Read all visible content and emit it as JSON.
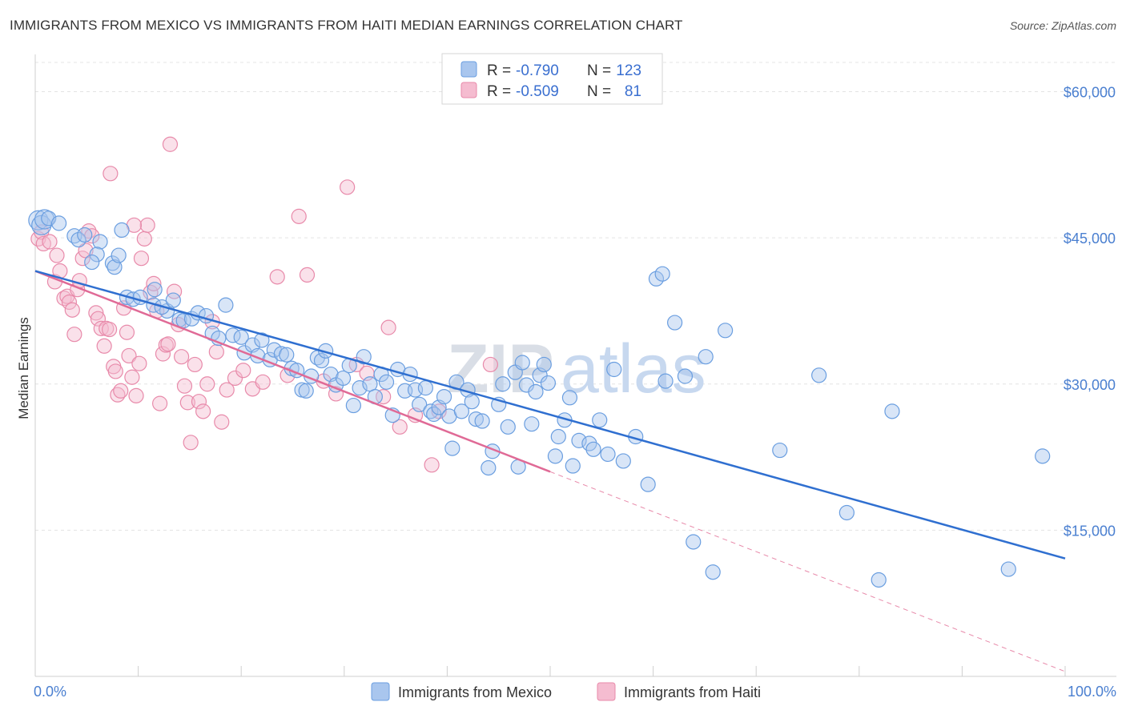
{
  "title": "IMMIGRANTS FROM MEXICO VS IMMIGRANTS FROM HAITI MEDIAN EARNINGS CORRELATION CHART",
  "source": "Source: ZipAtlas.com",
  "watermark": {
    "zip": "ZIP",
    "atlas": "atlas"
  },
  "colors": {
    "mexico": "#6a9ee0",
    "mexico_fill": "#a9c6ee",
    "mexico_line": "#2f6fd0",
    "haiti": "#e88aaa",
    "haiti_fill": "#f5bcd0",
    "haiti_line": "#e06a96",
    "tick": "#4a7fd0"
  },
  "legend": {
    "mexico": {
      "r_label": "R =",
      "r_value": "-0.790",
      "n_label": "N =",
      "n_value": "123"
    },
    "haiti": {
      "r_label": "R =",
      "r_value": "-0.509",
      "n_label": "N =",
      "n_value": "81"
    }
  },
  "chart_data": {
    "type": "scatter",
    "title": "IMMIGRANTS FROM MEXICO VS IMMIGRANTS FROM HAITI MEDIAN EARNINGS CORRELATION CHART",
    "xlabel": "",
    "ylabel": "Median Earnings",
    "xlim": [
      0,
      100
    ],
    "ylim": [
      0,
      63000
    ],
    "x_tick_labels": [
      "0.0%",
      "100.0%"
    ],
    "y_ticks": [
      15000,
      30000,
      45000,
      60000
    ],
    "y_tick_labels": [
      "$15,000",
      "$30,000",
      "$45,000",
      "$60,000"
    ],
    "grid": true,
    "legend_placement": "top-center",
    "series": [
      {
        "name": "Immigrants from Mexico",
        "r": -0.79,
        "n": 123,
        "trend": {
          "x": [
            0,
            100
          ],
          "y": [
            41600,
            12100
          ]
        },
        "points": [
          [
            0.3,
            46800
          ],
          [
            0.6,
            46300
          ],
          [
            0.9,
            46900
          ],
          [
            1.3,
            47000
          ],
          [
            2.3,
            46500
          ],
          [
            3.8,
            45200
          ],
          [
            4.2,
            44800
          ],
          [
            4.8,
            45300
          ],
          [
            6.3,
            44600
          ],
          [
            6.0,
            43300
          ],
          [
            5.5,
            42500
          ],
          [
            7.5,
            42400
          ],
          [
            7.7,
            42000
          ],
          [
            8.1,
            43200
          ],
          [
            8.4,
            45800
          ],
          [
            8.9,
            38900
          ],
          [
            9.5,
            38700
          ],
          [
            10.2,
            38900
          ],
          [
            11.6,
            39700
          ],
          [
            11.5,
            38100
          ],
          [
            12.8,
            37500
          ],
          [
            12.3,
            37900
          ],
          [
            13.4,
            38600
          ],
          [
            14.0,
            36600
          ],
          [
            14.4,
            36500
          ],
          [
            15.2,
            36700
          ],
          [
            15.8,
            37300
          ],
          [
            16.6,
            37000
          ],
          [
            17.2,
            35200
          ],
          [
            17.8,
            34700
          ],
          [
            18.5,
            38100
          ],
          [
            19.2,
            35000
          ],
          [
            20.0,
            34800
          ],
          [
            20.3,
            33200
          ],
          [
            21.1,
            34000
          ],
          [
            21.6,
            32900
          ],
          [
            22.0,
            34500
          ],
          [
            22.8,
            32500
          ],
          [
            23.2,
            33500
          ],
          [
            23.9,
            33100
          ],
          [
            24.4,
            33000
          ],
          [
            24.9,
            31600
          ],
          [
            25.4,
            31400
          ],
          [
            25.9,
            29400
          ],
          [
            26.3,
            29300
          ],
          [
            26.8,
            30800
          ],
          [
            27.4,
            32700
          ],
          [
            27.8,
            32400
          ],
          [
            28.2,
            33400
          ],
          [
            28.7,
            31000
          ],
          [
            29.2,
            29900
          ],
          [
            29.9,
            30600
          ],
          [
            30.5,
            31900
          ],
          [
            30.9,
            27800
          ],
          [
            31.5,
            29600
          ],
          [
            31.9,
            32800
          ],
          [
            32.5,
            30000
          ],
          [
            33.0,
            28700
          ],
          [
            33.6,
            31000
          ],
          [
            34.1,
            30200
          ],
          [
            34.7,
            26800
          ],
          [
            35.2,
            31500
          ],
          [
            35.9,
            29300
          ],
          [
            36.4,
            31000
          ],
          [
            36.9,
            29400
          ],
          [
            37.3,
            27900
          ],
          [
            37.9,
            29600
          ],
          [
            38.4,
            27200
          ],
          [
            38.7,
            26900
          ],
          [
            39.2,
            27600
          ],
          [
            39.7,
            28700
          ],
          [
            40.2,
            26700
          ],
          [
            40.5,
            23400
          ],
          [
            40.9,
            30200
          ],
          [
            41.4,
            27200
          ],
          [
            42.0,
            29400
          ],
          [
            42.4,
            28200
          ],
          [
            42.8,
            26400
          ],
          [
            43.4,
            26200
          ],
          [
            44.0,
            21400
          ],
          [
            44.4,
            23100
          ],
          [
            45.0,
            27900
          ],
          [
            45.4,
            30000
          ],
          [
            45.9,
            25600
          ],
          [
            46.9,
            21500
          ],
          [
            46.6,
            31200
          ],
          [
            47.3,
            32200
          ],
          [
            47.7,
            29900
          ],
          [
            48.2,
            25900
          ],
          [
            48.6,
            29200
          ],
          [
            49.0,
            30900
          ],
          [
            49.4,
            32000
          ],
          [
            49.8,
            30100
          ],
          [
            50.5,
            22600
          ],
          [
            50.8,
            24600
          ],
          [
            51.4,
            26300
          ],
          [
            51.9,
            28600
          ],
          [
            52.2,
            21600
          ],
          [
            52.8,
            24200
          ],
          [
            53.8,
            23900
          ],
          [
            54.2,
            23300
          ],
          [
            54.8,
            26300
          ],
          [
            55.6,
            22800
          ],
          [
            56.2,
            31500
          ],
          [
            57.1,
            22100
          ],
          [
            58.3,
            24600
          ],
          [
            59.5,
            19700
          ],
          [
            60.3,
            40800
          ],
          [
            60.9,
            41300
          ],
          [
            62.1,
            36300
          ],
          [
            63.1,
            30800
          ],
          [
            63.9,
            13800
          ],
          [
            65.1,
            32800
          ],
          [
            65.8,
            10700
          ],
          [
            67.0,
            35500
          ],
          [
            72.3,
            23200
          ],
          [
            76.1,
            30900
          ],
          [
            78.8,
            16800
          ],
          [
            81.9,
            9900
          ],
          [
            83.2,
            27200
          ],
          [
            94.5,
            11000
          ],
          [
            97.8,
            22600
          ],
          [
            61.2,
            30300
          ]
        ]
      },
      {
        "name": "Immigrants from Haiti",
        "r": -0.509,
        "n": 81,
        "trend": {
          "x": [
            0,
            50
          ],
          "y": [
            41600,
            21000
          ]
        },
        "trend_extended": {
          "x": [
            50,
            100
          ],
          "y": [
            21000,
            500
          ]
        },
        "points": [
          [
            0.3,
            44900
          ],
          [
            0.6,
            45600
          ],
          [
            0.8,
            44400
          ],
          [
            1.4,
            44600
          ],
          [
            1.9,
            40500
          ],
          [
            2.1,
            43200
          ],
          [
            2.4,
            41600
          ],
          [
            2.8,
            38800
          ],
          [
            3.1,
            39000
          ],
          [
            3.3,
            38400
          ],
          [
            3.6,
            37600
          ],
          [
            3.8,
            35100
          ],
          [
            4.1,
            39700
          ],
          [
            4.3,
            40600
          ],
          [
            4.6,
            42900
          ],
          [
            4.9,
            43700
          ],
          [
            5.2,
            45700
          ],
          [
            5.5,
            45200
          ],
          [
            5.9,
            37300
          ],
          [
            6.1,
            36700
          ],
          [
            6.4,
            35700
          ],
          [
            6.7,
            33900
          ],
          [
            6.9,
            35700
          ],
          [
            7.2,
            35600
          ],
          [
            7.3,
            51600
          ],
          [
            7.6,
            31800
          ],
          [
            7.8,
            31300
          ],
          [
            8.0,
            28900
          ],
          [
            8.3,
            29300
          ],
          [
            8.6,
            37800
          ],
          [
            8.9,
            35300
          ],
          [
            9.1,
            32900
          ],
          [
            9.4,
            30700
          ],
          [
            9.8,
            28800
          ],
          [
            10.1,
            32100
          ],
          [
            10.3,
            42900
          ],
          [
            10.6,
            44900
          ],
          [
            10.9,
            46300
          ],
          [
            11.2,
            39400
          ],
          [
            11.5,
            40300
          ],
          [
            11.8,
            37500
          ],
          [
            12.1,
            28000
          ],
          [
            12.4,
            33100
          ],
          [
            12.7,
            34000
          ],
          [
            13.1,
            54600
          ],
          [
            13.5,
            39500
          ],
          [
            13.9,
            36100
          ],
          [
            14.2,
            32800
          ],
          [
            14.5,
            29800
          ],
          [
            14.8,
            28100
          ],
          [
            15.1,
            24000
          ],
          [
            15.5,
            32000
          ],
          [
            15.9,
            28200
          ],
          [
            16.3,
            27200
          ],
          [
            16.7,
            30000
          ],
          [
            17.2,
            36400
          ],
          [
            17.6,
            33300
          ],
          [
            18.1,
            26100
          ],
          [
            18.6,
            29400
          ],
          [
            19.4,
            30600
          ],
          [
            20.2,
            31400
          ],
          [
            21.1,
            29500
          ],
          [
            22.1,
            30200
          ],
          [
            23.5,
            41000
          ],
          [
            24.5,
            30900
          ],
          [
            25.6,
            47200
          ],
          [
            26.4,
            41200
          ],
          [
            28.0,
            30300
          ],
          [
            29.2,
            29000
          ],
          [
            30.3,
            50200
          ],
          [
            31.2,
            32000
          ],
          [
            32.2,
            31100
          ],
          [
            33.8,
            28700
          ],
          [
            34.3,
            35800
          ],
          [
            35.4,
            25600
          ],
          [
            36.9,
            26800
          ],
          [
            38.5,
            21700
          ],
          [
            39.2,
            27200
          ],
          [
            44.2,
            32000
          ],
          [
            12.9,
            34100
          ],
          [
            9.6,
            46300
          ]
        ]
      }
    ]
  }
}
